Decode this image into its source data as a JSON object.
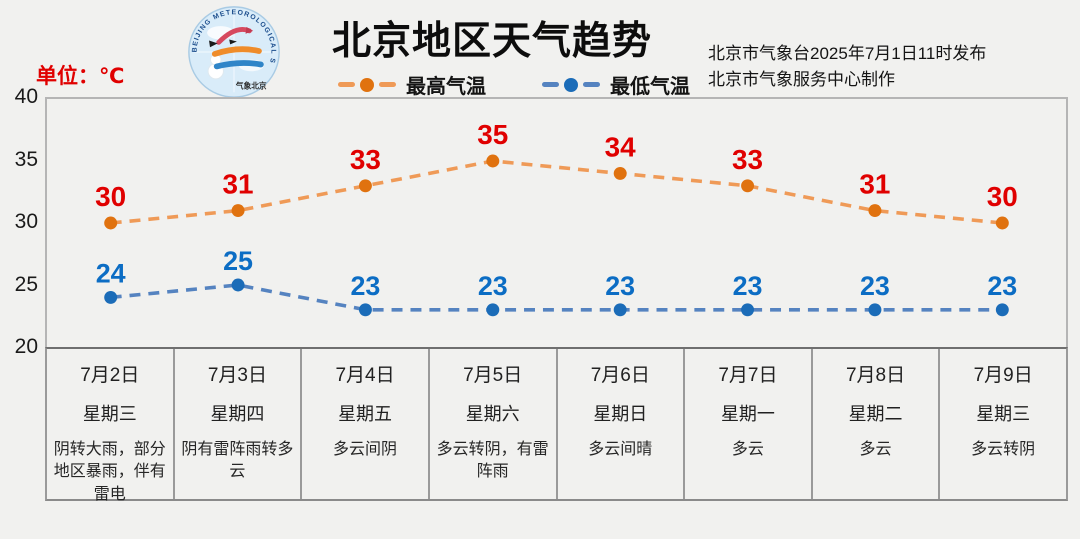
{
  "header": {
    "title": "北京地区天气趋势",
    "unit_label": "单位：℃",
    "issued_by": "北京市气象台2025年7月1日11时发布",
    "produced_by": "北京市气象服务中心制作",
    "logo": {
      "ring_text": "BEIJING METEOROLOGICAL SERVICE",
      "bottom_text": "气象北京"
    }
  },
  "legend": [
    {
      "label": "最高气温",
      "line_color": "#EF9A57",
      "marker_color": "#E0720F"
    },
    {
      "label": "最低气温",
      "line_color": "#5583C0",
      "marker_color": "#1B6CB8"
    }
  ],
  "chart_data": {
    "type": "line",
    "title": "北京地区天气趋势",
    "categories": [
      "7月2日",
      "7月3日",
      "7月4日",
      "7月5日",
      "7月6日",
      "7月7日",
      "7月8日",
      "7月9日"
    ],
    "weekdays": [
      "星期三",
      "星期四",
      "星期五",
      "星期六",
      "星期日",
      "星期一",
      "星期二",
      "星期三"
    ],
    "weather": [
      "阴转大雨，部分地区暴雨，伴有雷电",
      "阴有雷阵雨转多云",
      "多云间阴",
      "多云转阴，有雷阵雨",
      "多云间晴",
      "多云",
      "多云",
      "多云转阴"
    ],
    "series": [
      {
        "name": "最高气温",
        "values": [
          30,
          31,
          33,
          35,
          34,
          33,
          31,
          30
        ],
        "line_color": "#EF9A57",
        "marker_color": "#E0720F",
        "label_color": "#E00000"
      },
      {
        "name": "最低气温",
        "values": [
          24,
          25,
          23,
          23,
          23,
          23,
          23,
          23
        ],
        "line_color": "#5583C0",
        "marker_color": "#1B6CB8",
        "label_color": "#0C6DC4"
      }
    ],
    "ylabel": "℃",
    "ylim": [
      20,
      40
    ],
    "yticks": [
      40,
      35,
      30,
      25,
      20
    ],
    "grid": false,
    "line_style": "dashed",
    "legend_position": "top"
  }
}
